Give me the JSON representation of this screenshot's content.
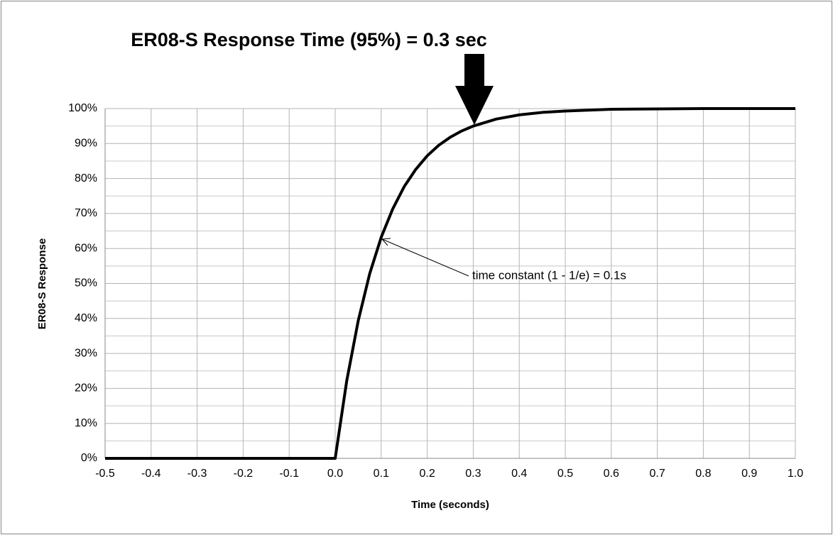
{
  "chart_data": {
    "type": "line",
    "title": "ER08-S Response Time (95%) = 0.3 sec",
    "xlabel": "Time (seconds)",
    "ylabel": "ER08-S Response",
    "annotations": [
      "time constant  (1 - 1/e) = 0.1s"
    ],
    "x": [
      -0.5,
      0,
      0.025,
      0.05,
      0.075,
      0.1,
      0.125,
      0.15,
      0.175,
      0.2,
      0.225,
      0.25,
      0.275,
      0.3,
      0.35,
      0.4,
      0.45,
      0.5,
      0.6,
      0.7,
      0.8,
      0.9,
      1.0
    ],
    "series": [
      {
        "name": "ER08-S Response",
        "color": "#000000",
        "values": [
          0,
          0,
          22.1,
          39.3,
          52.8,
          63.2,
          71.3,
          77.7,
          82.6,
          86.5,
          89.5,
          91.8,
          93.6,
          95.0,
          97.0,
          98.2,
          98.9,
          99.3,
          99.8,
          99.9,
          100,
          100,
          100
        ]
      }
    ],
    "xlim": [
      -0.5,
      1.0
    ],
    "xticks": [
      -0.5,
      -0.4,
      -0.3,
      -0.2,
      -0.1,
      {
        "value": 0,
        "label": "0.0"
      },
      0.1,
      0.2,
      0.3,
      0.4,
      0.5,
      0.6,
      0.7,
      0.8,
      0.9,
      {
        "value": 1,
        "label": "1.0"
      }
    ],
    "ylim": [
      0,
      100
    ],
    "yticks": [
      {
        "value": 0,
        "label": "0%"
      },
      {
        "value": 10,
        "label": "10%"
      },
      {
        "value": 20,
        "label": "20%"
      },
      {
        "value": 30,
        "label": "30%"
      },
      {
        "value": 40,
        "label": "40%"
      },
      {
        "value": 50,
        "label": "50%"
      },
      {
        "value": 60,
        "label": "60%"
      },
      {
        "value": 70,
        "label": "70%"
      },
      {
        "value": 80,
        "label": "80%"
      },
      {
        "value": 90,
        "label": "90%"
      },
      {
        "value": 100,
        "label": "100%"
      }
    ],
    "yminorticks": [
      5,
      15,
      25,
      35,
      45,
      55,
      65,
      75,
      85,
      95
    ],
    "grid": true
  }
}
